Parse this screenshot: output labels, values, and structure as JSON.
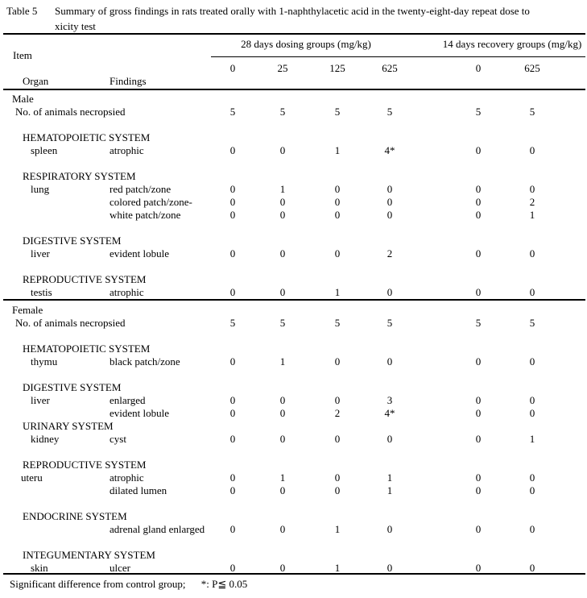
{
  "title": {
    "label": "Table 5",
    "line1": "Summary of gross findings in rats treated orally with 1-naphthylacetic acid in the twenty-eight-day repeat dose to",
    "line2": "xicity test"
  },
  "header": {
    "item": "Item",
    "organ": "Organ",
    "findings": "Findings",
    "dosing_group": "28 days dosing groups (mg/kg)",
    "recovery_group": "14 days recovery groups (mg/kg)",
    "doses": [
      "0",
      "25",
      "125",
      "625",
      "0",
      "625"
    ]
  },
  "male": {
    "rows": [
      {
        "kind": "group",
        "label": "Male"
      },
      {
        "kind": "count",
        "label": "No. of animals necropsied",
        "values": [
          "5",
          "5",
          "5",
          "5",
          "5",
          "5"
        ]
      },
      {
        "kind": "blank"
      },
      {
        "kind": "system",
        "label": "HEMATOPOIETIC SYSTEM"
      },
      {
        "kind": "data",
        "organ": "spleen",
        "finding": "atrophic",
        "values": [
          "0",
          "0",
          "1",
          "4*",
          "0",
          "0"
        ]
      },
      {
        "kind": "blank"
      },
      {
        "kind": "system",
        "label": "RESPIRATORY SYSTEM"
      },
      {
        "kind": "data",
        "organ": "lung",
        "finding": "red patch/zone",
        "values": [
          "0",
          "1",
          "0",
          "0",
          "0",
          "0"
        ]
      },
      {
        "kind": "data",
        "organ": "",
        "finding": "colored patch/zone-",
        "values": [
          "0",
          "0",
          "0",
          "0",
          "0",
          "2"
        ]
      },
      {
        "kind": "data",
        "organ": "",
        "finding": "white patch/zone",
        "values": [
          "0",
          "0",
          "0",
          "0",
          "0",
          "1"
        ]
      },
      {
        "kind": "blank"
      },
      {
        "kind": "system",
        "label": "DIGESTIVE SYSTEM"
      },
      {
        "kind": "data",
        "organ": "liver",
        "finding": "evident lobule",
        "values": [
          "0",
          "0",
          "0",
          "2",
          "0",
          "0"
        ]
      },
      {
        "kind": "blank"
      },
      {
        "kind": "system",
        "label": "REPRODUCTIVE SYSTEM"
      },
      {
        "kind": "data",
        "organ": "testis",
        "finding": "atrophic",
        "values": [
          "0",
          "0",
          "1",
          "0",
          "0",
          "0"
        ]
      }
    ]
  },
  "female": {
    "rows": [
      {
        "kind": "group",
        "label": "Female"
      },
      {
        "kind": "count",
        "label": "No. of animals necropsied",
        "values": [
          "5",
          "5",
          "5",
          "5",
          "5",
          "5"
        ]
      },
      {
        "kind": "blank"
      },
      {
        "kind": "system",
        "label": "HEMATOPOIETIC SYSTEM"
      },
      {
        "kind": "data",
        "organ": "thymu",
        "finding": "black patch/zone",
        "values": [
          "0",
          "1",
          "0",
          "0",
          "0",
          "0"
        ]
      },
      {
        "kind": "blank"
      },
      {
        "kind": "system",
        "label": "DIGESTIVE SYSTEM"
      },
      {
        "kind": "data",
        "organ": "liver",
        "finding": "enlarged",
        "values": [
          "0",
          "0",
          "0",
          "3",
          "0",
          "0"
        ]
      },
      {
        "kind": "data",
        "organ": "",
        "finding": "evident lobule",
        "values": [
          "0",
          "0",
          "2",
          "4*",
          "0",
          "0"
        ]
      },
      {
        "kind": "system",
        "label": "URINARY SYSTEM"
      },
      {
        "kind": "data",
        "organ": "kidney",
        "finding": "cyst",
        "values": [
          "0",
          "0",
          "0",
          "0",
          "0",
          "1"
        ]
      },
      {
        "kind": "blank"
      },
      {
        "kind": "system",
        "label": "REPRODUCTIVE SYSTEM"
      },
      {
        "kind": "data",
        "organ": "uteru",
        "flush": true,
        "finding": "atrophic",
        "values": [
          "0",
          "1",
          "0",
          "1",
          "0",
          "0"
        ]
      },
      {
        "kind": "data",
        "organ": "",
        "finding": "dilated lumen",
        "values": [
          "0",
          "0",
          "0",
          "1",
          "0",
          "0"
        ]
      },
      {
        "kind": "blank"
      },
      {
        "kind": "system",
        "label": "ENDOCRINE SYSTEM"
      },
      {
        "kind": "data",
        "organ": "",
        "finding": "adrenal gland enlarged",
        "values": [
          "0",
          "0",
          "1",
          "0",
          "0",
          "0"
        ]
      },
      {
        "kind": "blank"
      },
      {
        "kind": "system",
        "label": "INTEGUMENTARY SYSTEM"
      },
      {
        "kind": "data",
        "organ": "skin",
        "finding": "ulcer",
        "values": [
          "0",
          "0",
          "1",
          "0",
          "0",
          "0"
        ]
      }
    ]
  },
  "footnote": {
    "text": "Significant difference from control group;",
    "sig": "*: P≦ 0.05"
  },
  "colors": {
    "text": "#000000",
    "background": "#ffffff",
    "rule": "#000000"
  }
}
